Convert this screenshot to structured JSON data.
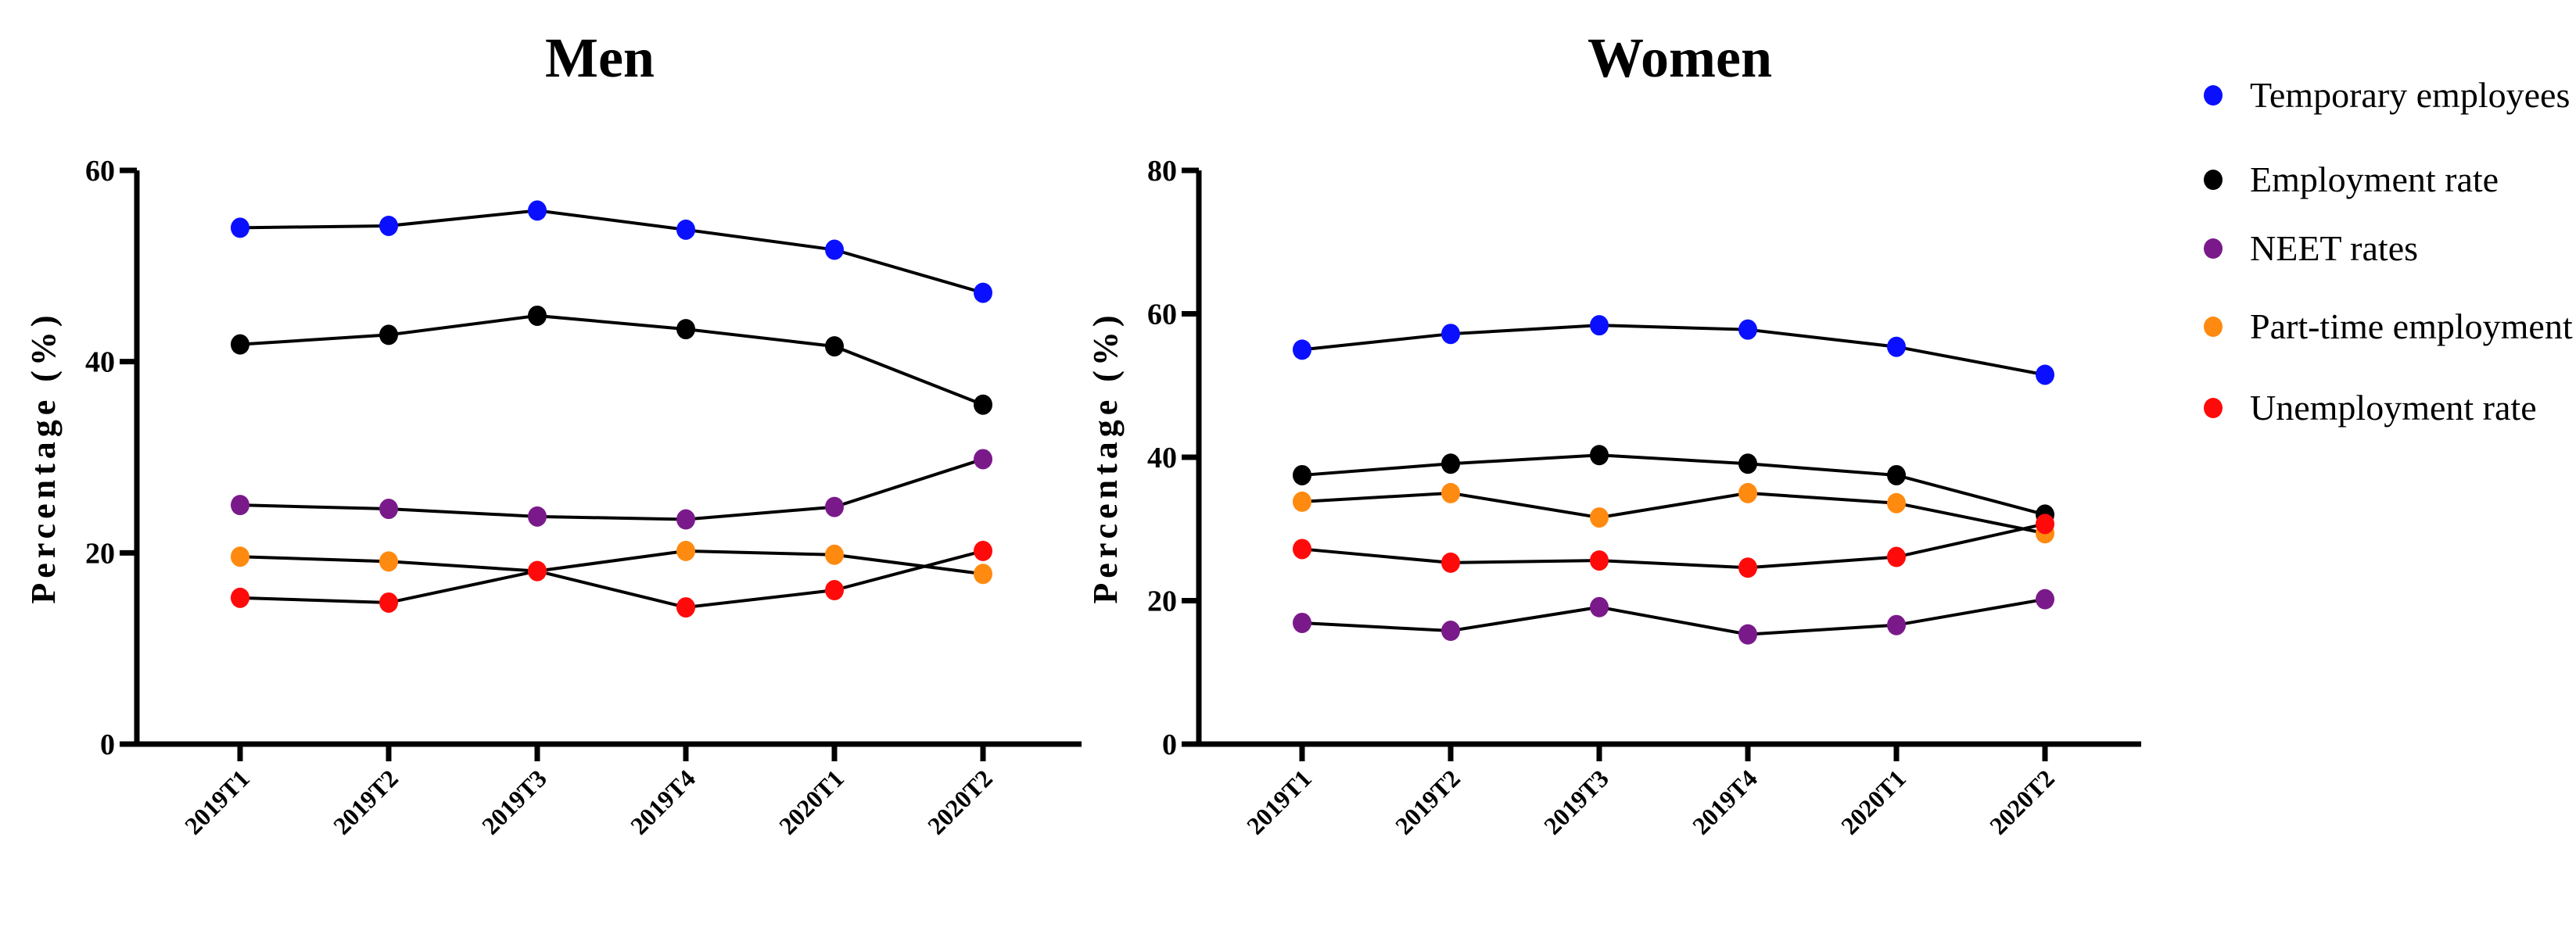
{
  "chart_data": [
    {
      "type": "line",
      "title": "Men",
      "xlabel": "",
      "ylabel": "Percentage (%)",
      "ylim": [
        0,
        60
      ],
      "yticks": [
        0,
        20,
        40,
        60
      ],
      "categories": [
        "2019T1",
        "2019T2",
        "2019T3",
        "2019T4",
        "2020T1",
        "2020T2"
      ],
      "series": [
        {
          "name": "Temporary employees",
          "color": "#0a10ff",
          "values": [
            54.0,
            54.2,
            55.8,
            53.8,
            51.7,
            47.2
          ]
        },
        {
          "name": "Employment rate",
          "color": "#000000",
          "values": [
            41.8,
            42.8,
            44.8,
            43.4,
            41.6,
            35.5
          ]
        },
        {
          "name": "NEET rates",
          "color": "#7a1a8a",
          "values": [
            25.0,
            24.6,
            23.8,
            23.5,
            24.8,
            29.8
          ]
        },
        {
          "name": "Part-time employment",
          "color": "#ff8a10",
          "values": [
            19.6,
            19.1,
            18.1,
            20.2,
            19.8,
            17.8
          ]
        },
        {
          "name": "Unemployment rate",
          "color": "#ff0a0a",
          "values": [
            15.3,
            14.8,
            18.1,
            14.3,
            16.1,
            20.2
          ]
        }
      ]
    },
    {
      "type": "line",
      "title": "Women",
      "xlabel": "",
      "ylabel": "Percentage (%)",
      "ylim": [
        0,
        80
      ],
      "yticks": [
        0,
        20,
        40,
        60,
        80
      ],
      "categories": [
        "2019T1",
        "2019T2",
        "2019T3",
        "2019T4",
        "2020T1",
        "2020T2"
      ],
      "series": [
        {
          "name": "Temporary employees",
          "color": "#0a10ff",
          "values": [
            55.0,
            57.2,
            58.4,
            57.8,
            55.4,
            51.5
          ]
        },
        {
          "name": "Employment rate",
          "color": "#000000",
          "values": [
            37.5,
            39.1,
            40.3,
            39.1,
            37.5,
            32.0
          ]
        },
        {
          "name": "NEET rates",
          "color": "#7a1a8a",
          "values": [
            16.9,
            15.8,
            19.1,
            15.3,
            16.6,
            20.2
          ]
        },
        {
          "name": "Part-time employment",
          "color": "#ff8a10",
          "values": [
            33.8,
            35.0,
            31.6,
            35.0,
            33.6,
            29.4
          ]
        },
        {
          "name": "Unemployment rate",
          "color": "#ff0a0a",
          "values": [
            27.2,
            25.3,
            25.6,
            24.6,
            26.1,
            30.7
          ]
        }
      ]
    }
  ],
  "legend": {
    "placement": "right",
    "items": [
      {
        "label": "Temporary employees",
        "color": "#0a10ff"
      },
      {
        "label": "Employment rate",
        "color": "#000000"
      },
      {
        "label": "NEET rates",
        "color": "#7a1a8a"
      },
      {
        "label": "Part-time employment",
        "color": "#ff8a10"
      },
      {
        "label": "Unemployment rate",
        "color": "#ff0a0a"
      }
    ]
  }
}
